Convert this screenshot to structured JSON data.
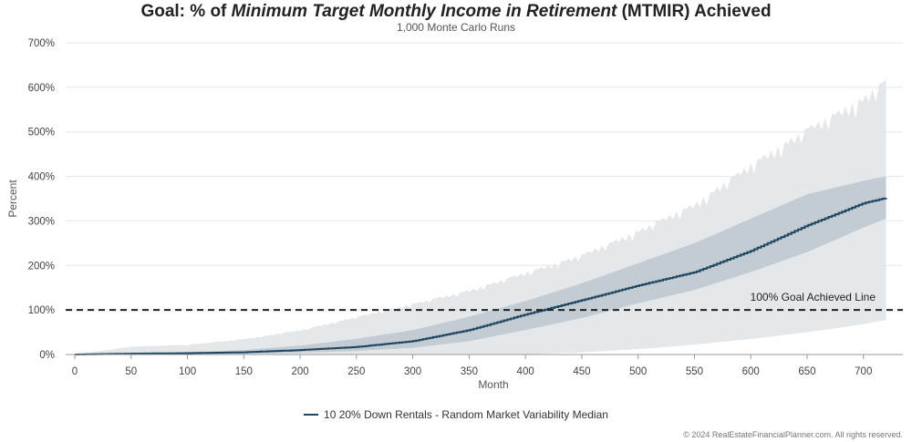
{
  "title": {
    "prefix": "Goal: % of ",
    "emphasis": "Minimum Target Monthly Income in Retirement",
    "suffix": " (MTMIR) Achieved"
  },
  "subtitle": "1,000 Monte Carlo Runs",
  "copyright": "© 2024 RealEstateFinancialPlanner.com. All rights reserved.",
  "colors": {
    "median_line": "#1f4560",
    "inner_band": "#c3cbd3",
    "outer_band": "#e4e8eb",
    "goal_line": "#222222",
    "gridline": "#e6e6e6"
  },
  "chart_data": {
    "type": "area",
    "title": "Goal: % of Minimum Target Monthly Income in Retirement (MTMIR) Achieved",
    "subtitle": "1,000 Monte Carlo Runs",
    "xlabel": "Month",
    "ylabel": "Percent",
    "xlim": [
      0,
      720
    ],
    "ylim": [
      0,
      700
    ],
    "x_ticks": [
      "0",
      "50",
      "100",
      "150",
      "200",
      "250",
      "300",
      "350",
      "400",
      "450",
      "500",
      "550",
      "600",
      "650",
      "700"
    ],
    "y_ticks": [
      "0%",
      "100%",
      "200%",
      "300%",
      "400%",
      "500%",
      "600%",
      "700%"
    ],
    "grid": "horizontal",
    "legend_position": "bottom",
    "x": [
      0,
      50,
      100,
      150,
      200,
      250,
      300,
      350,
      400,
      450,
      500,
      550,
      600,
      650,
      700,
      720
    ],
    "series": [
      {
        "name": "10 20% Down Rentals - Random Market Variability Median",
        "role": "median",
        "values": [
          0,
          2,
          3,
          5,
          10,
          17,
          30,
          55,
          90,
          122,
          155,
          185,
          233,
          290,
          340,
          352
        ]
      },
      {
        "role": "band_inner_upper",
        "values": [
          0,
          3,
          5,
          10,
          20,
          35,
          55,
          85,
          120,
          160,
          205,
          250,
          305,
          360,
          390,
          400
        ]
      },
      {
        "role": "band_inner_lower",
        "values": [
          0,
          1,
          1,
          2,
          4,
          8,
          15,
          30,
          55,
          82,
          115,
          145,
          185,
          230,
          285,
          305
        ]
      },
      {
        "role": "band_outer_upper",
        "values": [
          0,
          18,
          22,
          35,
          55,
          85,
          115,
          145,
          185,
          225,
          280,
          340,
          430,
          510,
          580,
          620
        ]
      },
      {
        "role": "band_outer_lower",
        "values": [
          0,
          0,
          0,
          0,
          0,
          0,
          0,
          0,
          0,
          5,
          12,
          22,
          35,
          50,
          68,
          78
        ]
      }
    ],
    "annotations": [
      {
        "text": "100% Goal Achieved Line",
        "y": 100,
        "style": "dashed"
      }
    ]
  }
}
